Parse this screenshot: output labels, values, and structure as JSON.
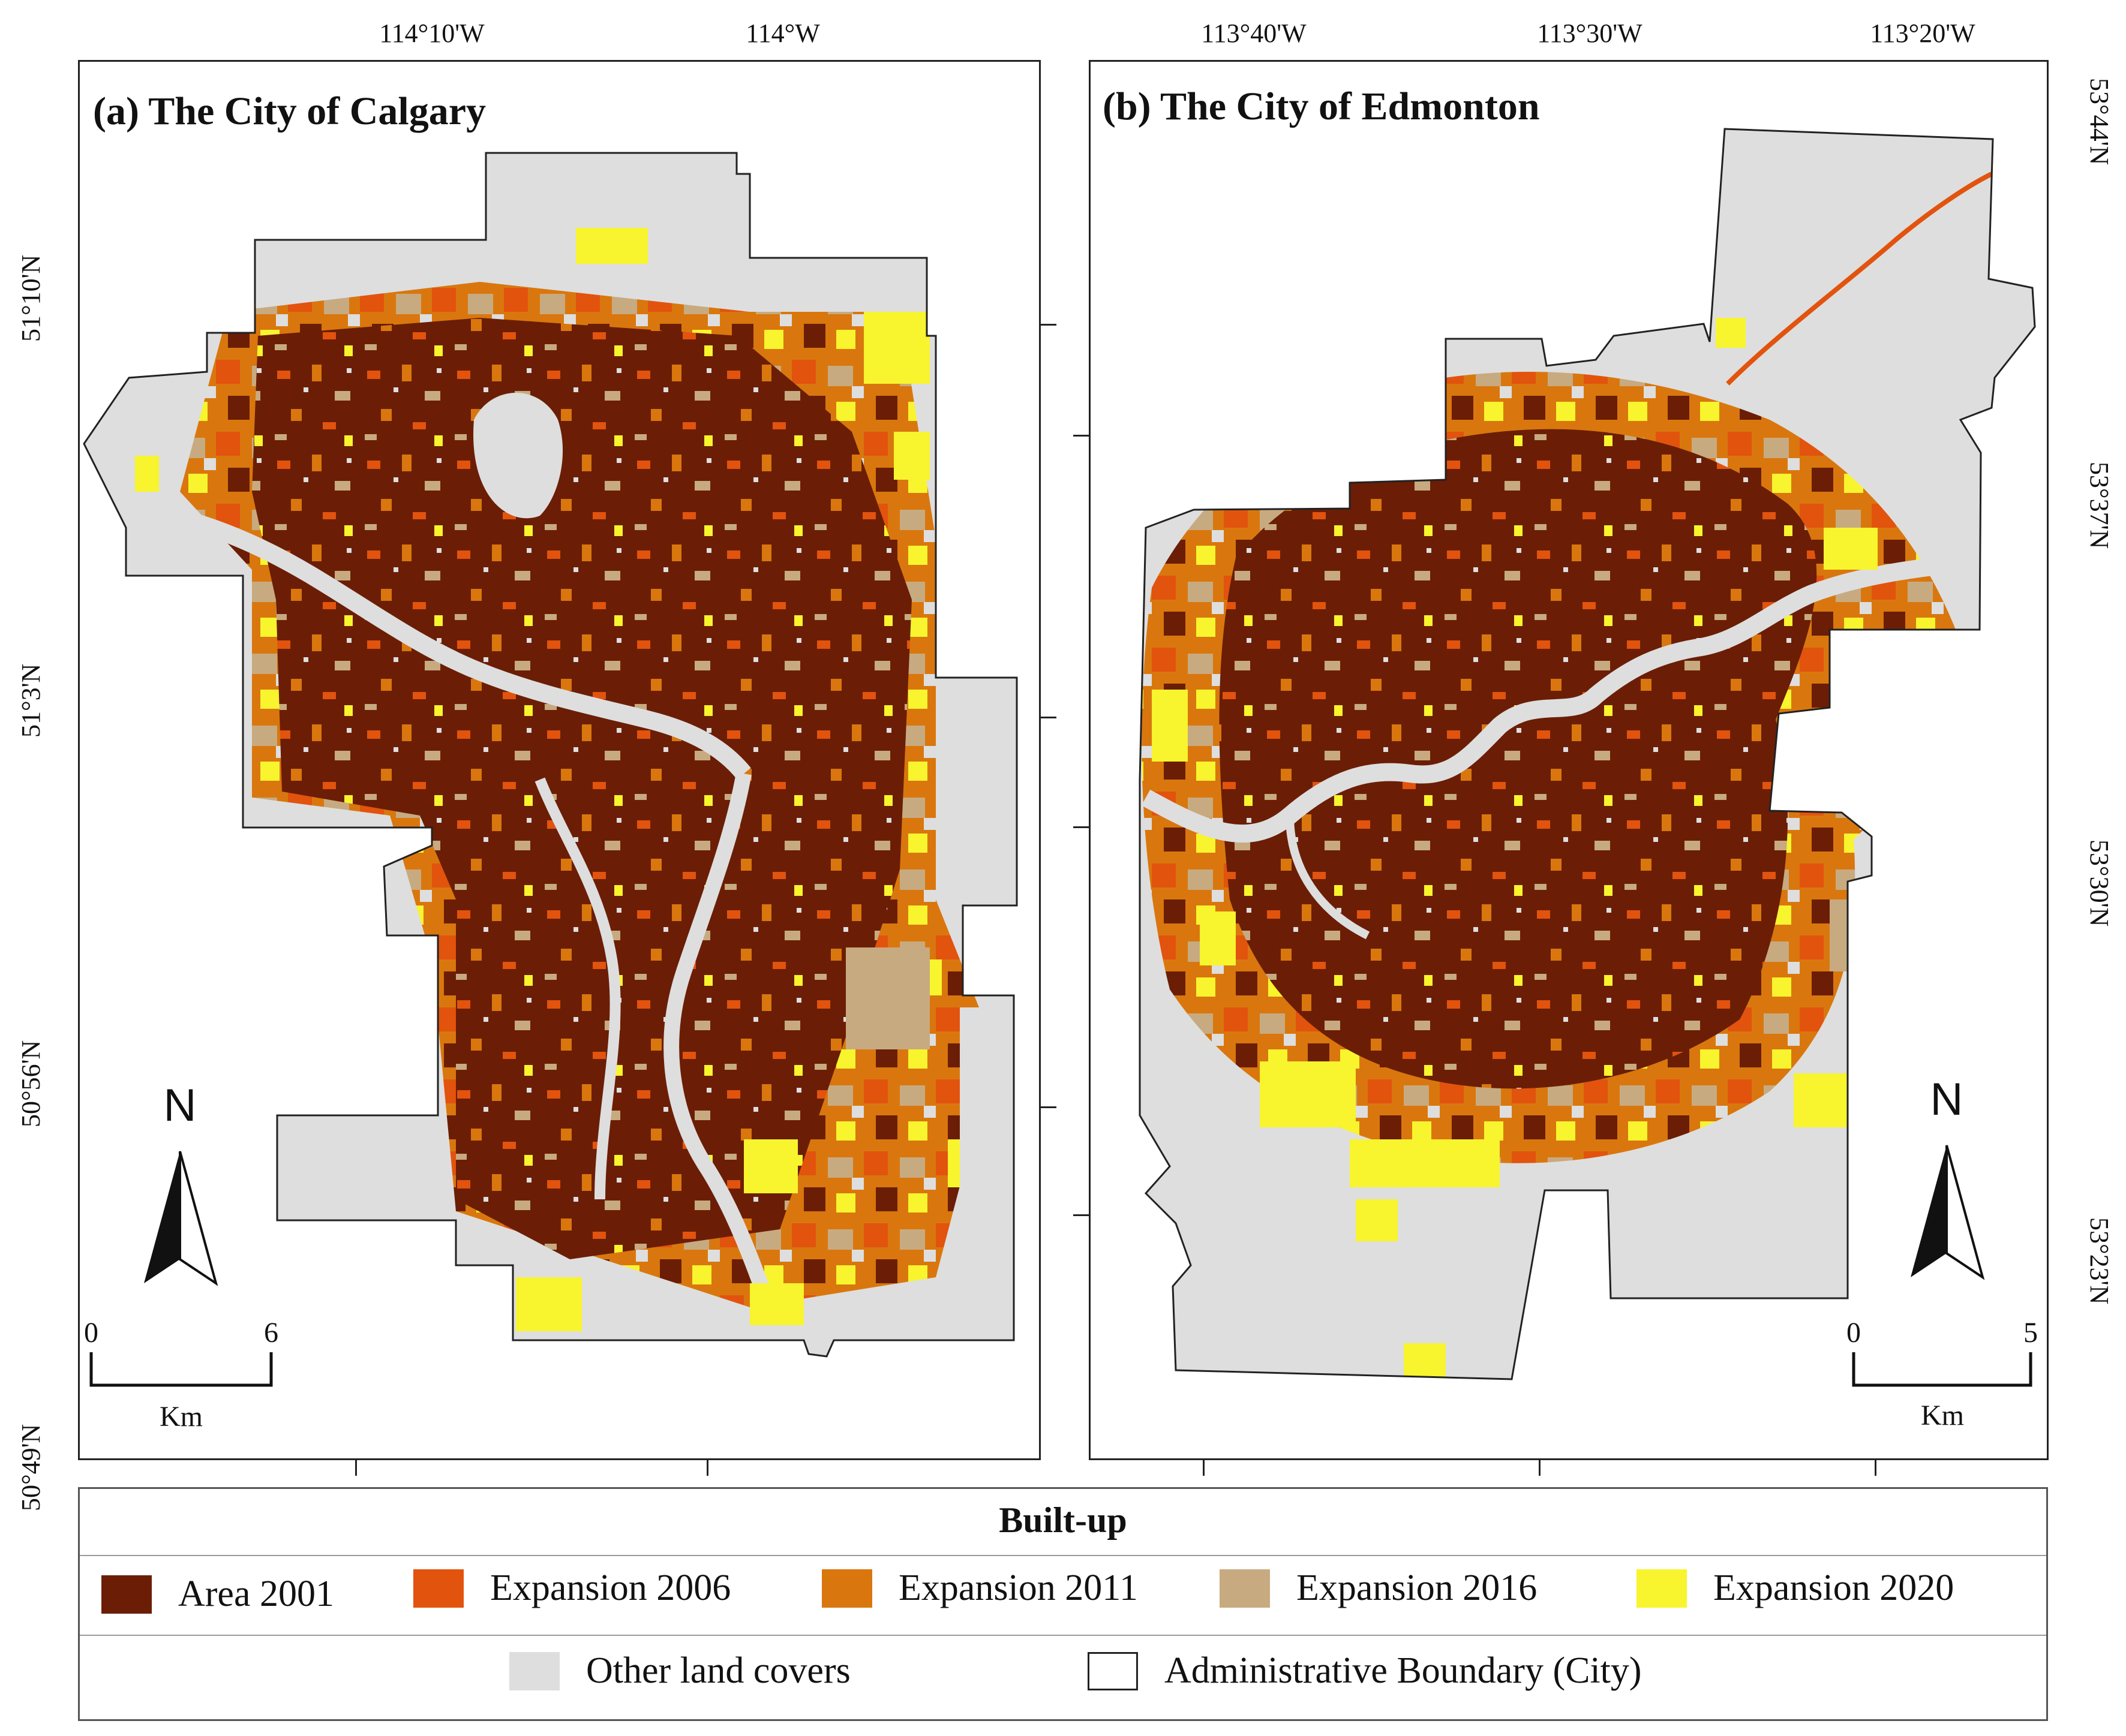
{
  "panels": [
    {
      "title": "(a) The City of Calgary",
      "top_ticks": [
        "114°10'W",
        "114°W"
      ],
      "left_ticks": [
        "51°10'N",
        "51°3'N",
        "50°56'N",
        "50°49'N"
      ],
      "north_letter": "N",
      "scale": {
        "zero": "0",
        "end": "6",
        "unit": "Km"
      }
    },
    {
      "title": "(b) The City of Edmonton",
      "top_ticks": [
        "113°40'W",
        "113°30'W",
        "113°20'W"
      ],
      "right_ticks": [
        "53°44'N",
        "53°37'N",
        "53°30'N",
        "53°23'N"
      ],
      "north_letter": "N",
      "scale": {
        "zero": "0",
        "end": "5",
        "unit": "Km"
      }
    }
  ],
  "legend": {
    "title": "Built-up",
    "items": [
      {
        "label": "Area 2001",
        "color": "#6b1e05"
      },
      {
        "label": "Expansion 2006",
        "color": "#e2530e"
      },
      {
        "label": "Expansion 2011",
        "color": "#d9770e"
      },
      {
        "label": "Expansion 2016",
        "color": "#c8aa80"
      },
      {
        "label": "Expansion 2020",
        "color": "#f8f42e"
      }
    ],
    "other": [
      {
        "label": "Other land covers",
        "color": "#dedede"
      },
      {
        "label": "Administrative Boundary (City)",
        "color": "#ffffff"
      }
    ]
  }
}
